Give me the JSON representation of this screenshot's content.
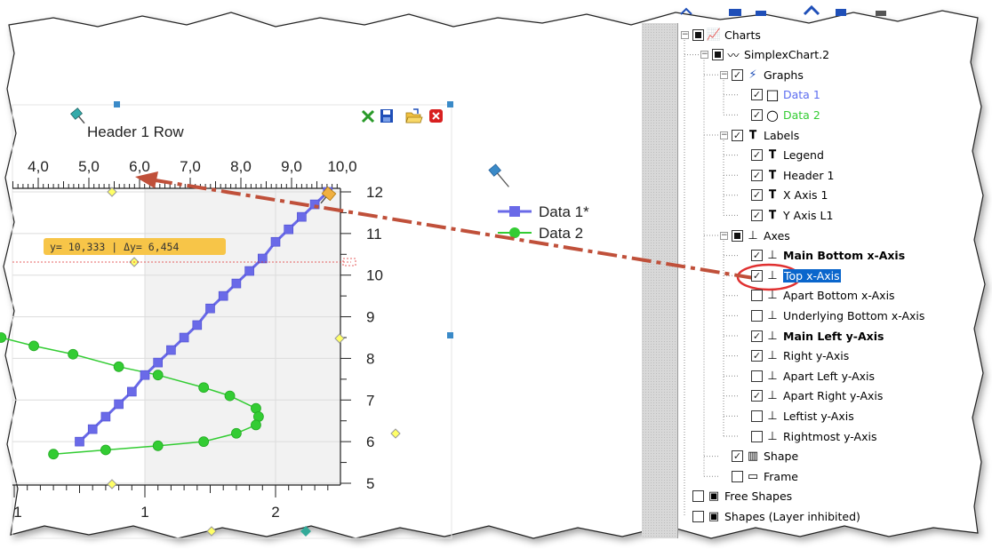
{
  "chart": {
    "header": "Header 1 Row",
    "top_axis_ticks": [
      "4,0",
      "5,0",
      "6,0",
      "7,0",
      "8,0",
      "9,0",
      "10,0"
    ],
    "right_axis_ticks": [
      "12",
      "11",
      "10",
      "9",
      "8",
      "7",
      "6",
      "5"
    ],
    "bottom_axis_ticks": [
      "1",
      "1",
      "2"
    ],
    "cursor_readout": "y= 10,333 | Δy= 6,454",
    "legend": {
      "item1": "Data 1*",
      "item2": "Data 2"
    },
    "toolbar_icons": [
      "autoscale-icon",
      "save-icon",
      "open-folder-icon",
      "close-icon"
    ],
    "colors": {
      "data1": "#6a6ae8",
      "data2": "#33cc33",
      "arrow": "#c0503a",
      "readout_bg": "#f7c548"
    }
  },
  "chart_data": {
    "type": "line",
    "series": [
      {
        "name": "Data 1*",
        "x": [
          0.5,
          0.6,
          0.7,
          0.8,
          0.9,
          1.0,
          1.1,
          1.2,
          1.3,
          1.4,
          1.5,
          1.6,
          1.7,
          1.8,
          1.9,
          2.0,
          2.1,
          2.2,
          2.3,
          2.4
        ],
        "y": [
          6.0,
          6.3,
          6.6,
          6.9,
          7.2,
          7.6,
          7.9,
          8.2,
          8.5,
          8.8,
          9.2,
          9.5,
          9.8,
          10.1,
          10.4,
          10.8,
          11.1,
          11.4,
          11.7,
          12.0
        ]
      },
      {
        "name": "Data 2",
        "x": [
          -0.1,
          0.15,
          0.45,
          0.8,
          1.1,
          1.45,
          1.65,
          1.85,
          1.87,
          1.85,
          1.7,
          1.45,
          1.1,
          0.7,
          0.3
        ],
        "y": [
          8.5,
          8.3,
          8.1,
          7.8,
          7.6,
          7.3,
          7.1,
          6.8,
          6.6,
          6.4,
          6.2,
          6.0,
          5.9,
          5.8,
          5.7
        ]
      }
    ],
    "right_axis": {
      "range": [
        5,
        12
      ]
    },
    "top_axis": {
      "range": [
        4.0,
        10.0
      ]
    },
    "bottom_axis": {
      "range": [
        0,
        2.5
      ]
    }
  },
  "tree": {
    "items": [
      {
        "level": 0,
        "label": "Charts",
        "exp": "−",
        "check": "filled",
        "icon": "chart-icon"
      },
      {
        "level": 1,
        "label": "SimplexChart.2",
        "exp": "−",
        "check": "filled",
        "icon": "simplex-chart-icon"
      },
      {
        "level": 2,
        "label": "Graphs",
        "exp": "−",
        "check": "checked",
        "icon": "lightning-icon"
      },
      {
        "level": 3,
        "label": "Data 1",
        "exp": "",
        "check": "checked",
        "icon": "square-marker-icon",
        "style": "blue"
      },
      {
        "level": 3,
        "label": "Data 2",
        "exp": "",
        "check": "checked",
        "icon": "circle-marker-icon",
        "style": "green"
      },
      {
        "level": 2,
        "label": "Labels",
        "exp": "−",
        "check": "checked",
        "icon": "text-box-icon"
      },
      {
        "level": 3,
        "label": "Legend",
        "exp": "",
        "check": "checked",
        "icon": "text-t-icon"
      },
      {
        "level": 3,
        "label": "Header 1",
        "exp": "",
        "check": "checked",
        "icon": "text-t-icon"
      },
      {
        "level": 3,
        "label": "X Axis 1",
        "exp": "",
        "check": "checked",
        "icon": "text-t-icon"
      },
      {
        "level": 3,
        "label": "Y Axis L1",
        "exp": "",
        "check": "checked",
        "icon": "text-t-icon"
      },
      {
        "level": 2,
        "label": "Axes",
        "exp": "−",
        "check": "filled",
        "icon": "axes-icon"
      },
      {
        "level": 3,
        "label": "Main Bottom x-Axis",
        "exp": "",
        "check": "checked",
        "icon": "axis-icon",
        "style": "bold"
      },
      {
        "level": 3,
        "label": "Top x-Axis",
        "exp": "",
        "check": "checked",
        "icon": "axis-icon",
        "style": "selected"
      },
      {
        "level": 3,
        "label": "Apart Bottom x-Axis",
        "exp": "",
        "check": "empty",
        "icon": "axis-icon"
      },
      {
        "level": 3,
        "label": "Underlying Bottom x-Axis",
        "exp": "",
        "check": "empty",
        "icon": "axis-icon"
      },
      {
        "level": 3,
        "label": "Main Left y-Axis",
        "exp": "",
        "check": "checked",
        "icon": "axis-icon",
        "style": "bold"
      },
      {
        "level": 3,
        "label": "Right y-Axis",
        "exp": "",
        "check": "checked",
        "icon": "axis-icon"
      },
      {
        "level": 3,
        "label": "Apart Left y-Axis",
        "exp": "",
        "check": "empty",
        "icon": "axis-icon"
      },
      {
        "level": 3,
        "label": "Apart Right y-Axis",
        "exp": "",
        "check": "checked",
        "icon": "axis-icon"
      },
      {
        "level": 3,
        "label": "Leftist y-Axis",
        "exp": "",
        "check": "empty",
        "icon": "axis-icon"
      },
      {
        "level": 3,
        "label": "Rightmost y-Axis",
        "exp": "",
        "check": "empty",
        "icon": "axis-icon"
      },
      {
        "level": 2,
        "label": "Shape",
        "exp": "",
        "check": "checked",
        "icon": "shape-icon"
      },
      {
        "level": 2,
        "label": "Frame",
        "exp": "",
        "check": "empty",
        "icon": "frame-icon"
      },
      {
        "level": 0,
        "label": "Free Shapes",
        "exp": "",
        "check": "empty",
        "icon": "layer-icon"
      },
      {
        "level": 0,
        "label": "Shapes (Layer inhibited)",
        "exp": "",
        "check": "empty",
        "icon": "layer-icon"
      }
    ]
  }
}
